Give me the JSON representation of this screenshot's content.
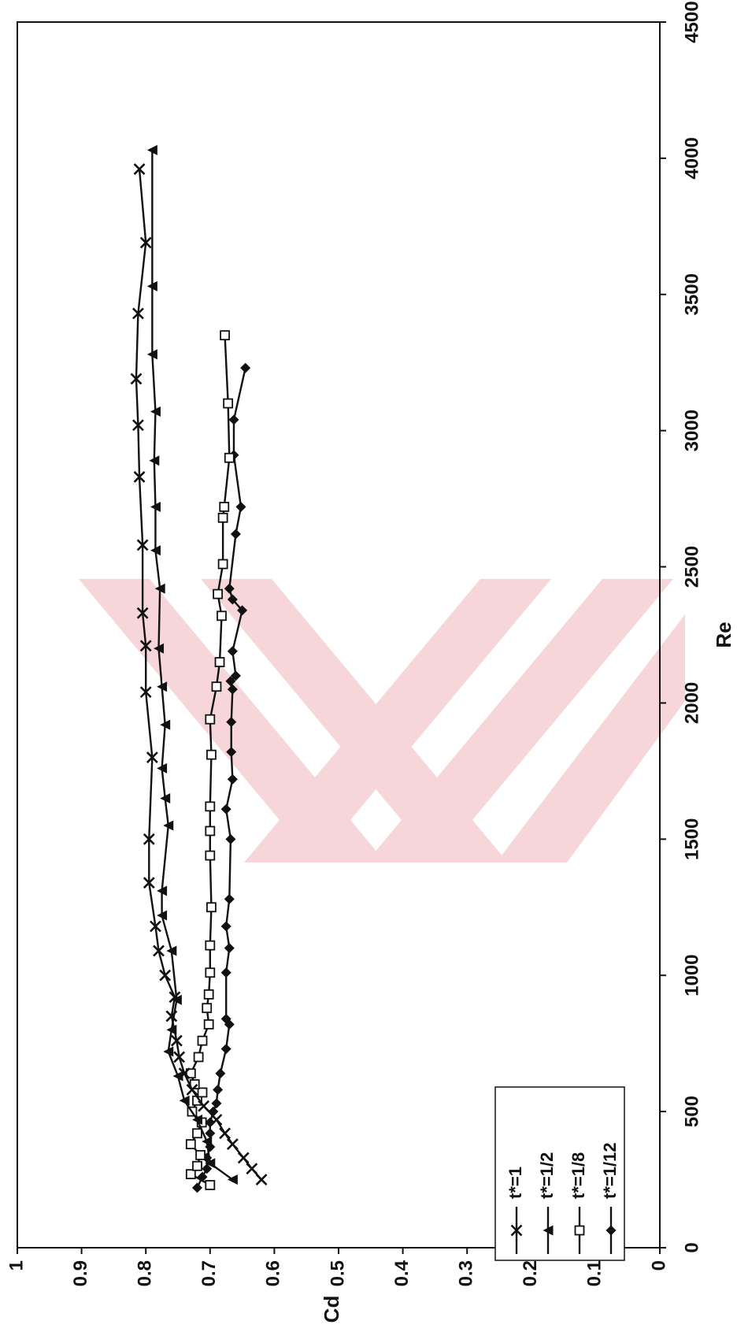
{
  "chart_data": {
    "type": "line",
    "orientation": "rotated-90-counterclockwise",
    "xlabel": "Re",
    "ylabel": "Cd",
    "xlim": [
      0,
      4500
    ],
    "ylim": [
      0,
      1
    ],
    "xticks": [
      "0",
      "500",
      "1000",
      "1500",
      "2000",
      "2500",
      "3000",
      "3500",
      "4000",
      "4500"
    ],
    "yticks": [
      "0",
      "0.1",
      "0.2",
      "0.3",
      "0.4",
      "0.5",
      "0.6",
      "0.7",
      "0.8",
      "0.9",
      "1"
    ],
    "grid": false,
    "legend_position": "bottom-right",
    "colors": {
      "line": "#111111",
      "watermark": "#f6d6d9"
    },
    "series": [
      {
        "name": "t*=1/12",
        "marker": "diamond",
        "x": [
          220,
          260,
          290,
          330,
          370,
          420,
          460,
          500,
          530,
          580,
          640,
          730,
          820,
          840,
          1010,
          1100,
          1180,
          1280,
          1500,
          1610,
          1720,
          1820,
          1930,
          2050,
          2080,
          2100,
          2190,
          2340,
          2380,
          2420,
          2620,
          2720,
          2910,
          3040,
          3230
        ],
        "y": [
          0.72,
          0.712,
          0.705,
          0.705,
          0.7,
          0.7,
          0.7,
          0.695,
          0.69,
          0.688,
          0.684,
          0.675,
          0.67,
          0.675,
          0.675,
          0.67,
          0.675,
          0.67,
          0.668,
          0.675,
          0.665,
          0.667,
          0.667,
          0.665,
          0.668,
          0.66,
          0.665,
          0.65,
          0.665,
          0.67,
          0.66,
          0.652,
          0.663,
          0.663,
          0.645
        ]
      },
      {
        "name": "t*=1/8",
        "marker": "square",
        "x": [
          230,
          270,
          300,
          340,
          380,
          420,
          460,
          500,
          540,
          570,
          600,
          640,
          700,
          760,
          820,
          880,
          930,
          1010,
          1110,
          1250,
          1440,
          1530,
          1620,
          1810,
          1940,
          2060,
          2150,
          2320,
          2400,
          2510,
          2680,
          2720,
          2900,
          3100,
          3350
        ],
        "y": [
          0.7,
          0.73,
          0.72,
          0.715,
          0.73,
          0.72,
          0.713,
          0.728,
          0.72,
          0.712,
          0.724,
          0.73,
          0.718,
          0.712,
          0.702,
          0.705,
          0.702,
          0.7,
          0.7,
          0.698,
          0.7,
          0.7,
          0.7,
          0.698,
          0.7,
          0.69,
          0.685,
          0.682,
          0.688,
          0.68,
          0.68,
          0.678,
          0.67,
          0.672,
          0.677
        ]
      },
      {
        "name": "t*=1/2",
        "marker": "triangle",
        "x": [
          250,
          310,
          390,
          470,
          540,
          630,
          720,
          800,
          910,
          1090,
          1220,
          1310,
          1550,
          1650,
          1760,
          1920,
          2060,
          2200,
          2420,
          2560,
          2720,
          2890,
          3070,
          3280,
          3530,
          4030
        ],
        "y": [
          0.665,
          0.7,
          0.705,
          0.72,
          0.74,
          0.75,
          0.765,
          0.76,
          0.752,
          0.76,
          0.775,
          0.775,
          0.765,
          0.77,
          0.775,
          0.77,
          0.775,
          0.78,
          0.778,
          0.785,
          0.785,
          0.787,
          0.785,
          0.79,
          0.79,
          0.79
        ]
      },
      {
        "name": "t*=1",
        "marker": "x",
        "x": [
          250,
          290,
          330,
          380,
          420,
          470,
          520,
          580,
          640,
          700,
          760,
          850,
          920,
          1000,
          1090,
          1180,
          1340,
          1500,
          1800,
          2040,
          2210,
          2330,
          2580,
          2830,
          3020,
          3190,
          3430,
          3690,
          3960
        ],
        "y": [
          0.62,
          0.635,
          0.648,
          0.665,
          0.677,
          0.69,
          0.71,
          0.728,
          0.74,
          0.748,
          0.752,
          0.76,
          0.755,
          0.77,
          0.78,
          0.785,
          0.795,
          0.795,
          0.79,
          0.8,
          0.8,
          0.805,
          0.805,
          0.81,
          0.812,
          0.815,
          0.812,
          0.8,
          0.81
        ]
      }
    ]
  }
}
